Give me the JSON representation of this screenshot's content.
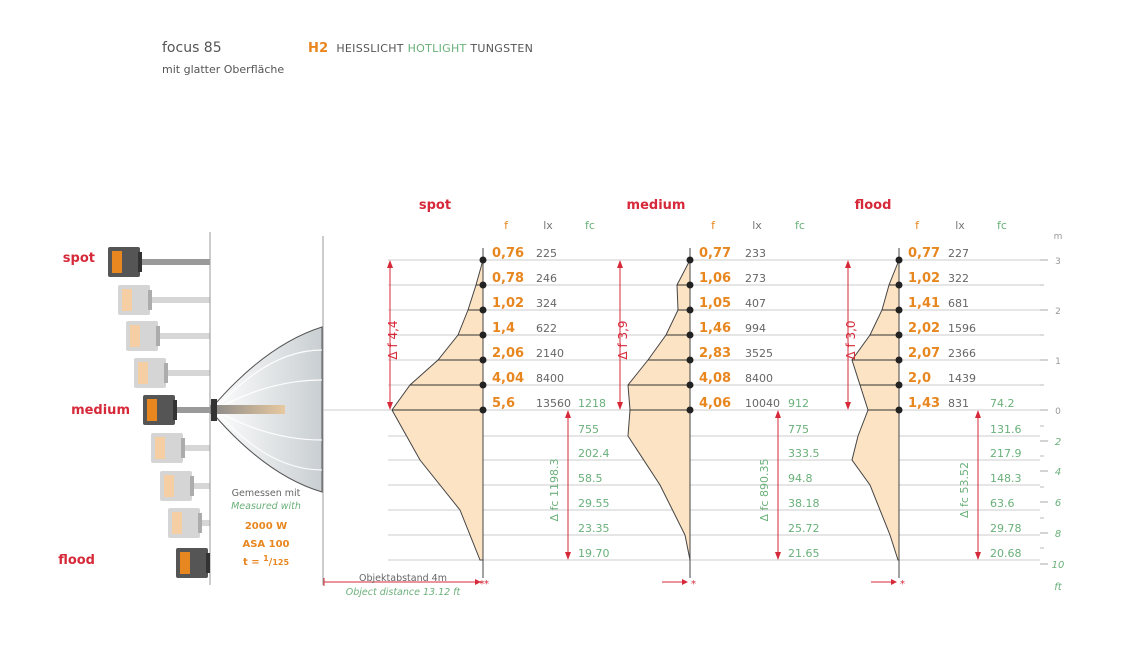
{
  "header": {
    "product": "focus 85",
    "subtitle": "mit glatter Oberfläche",
    "code": "H2",
    "type_de": "HEISSLICHT",
    "type_en": "HOTLIGHT",
    "type_tungsten": "TUNGSTEN"
  },
  "lamp_labels": {
    "spot": "spot",
    "medium": "medium",
    "flood": "flood"
  },
  "measured": {
    "line1": "Gemessen mit",
    "line2": "Measured with",
    "power": "2000 W",
    "asa": "ASA 100",
    "shutter_prefix": "t = ",
    "shutter_num": "1",
    "shutter_den": "125"
  },
  "distance": {
    "de": "Objektabstand  4m",
    "en": "Object distance 13.12 ft"
  },
  "column_headers": {
    "f": "f",
    "lx": "lx",
    "fc": "fc"
  },
  "axes": {
    "m_label": "m",
    "ft_label": "ft",
    "m_ticks": [
      "3",
      "2",
      "1",
      "0"
    ],
    "ft_ticks": [
      "2",
      "4",
      "6",
      "8",
      "10"
    ]
  },
  "colors": {
    "orange": "#e8861f",
    "green": "#6ab07a",
    "red": "#d62a3a",
    "fill": "#fbe3c4"
  },
  "chart_data": [
    {
      "type": "table",
      "title": "spot",
      "f_values": [
        "0,76",
        "0,78",
        "1,02",
        "1,4",
        "2,06",
        "4,04",
        "5,6"
      ],
      "lx_values": [
        "225",
        "246",
        "324",
        "622",
        "2140",
        "8400",
        "13560"
      ],
      "fc_values": [
        "1218",
        "755",
        "202.4",
        "58.5",
        "29.55",
        "23.35",
        "19.70"
      ],
      "delta_f": "Δ f 4,4",
      "delta_fc": "Δ fc 1198.3"
    },
    {
      "type": "table",
      "title": "medium",
      "f_values": [
        "0,77",
        "1,06",
        "1,05",
        "1,46",
        "2,83",
        "4,08",
        "4,06"
      ],
      "lx_values": [
        "233",
        "273",
        "407",
        "994",
        "3525",
        "8400",
        "10040"
      ],
      "fc_values": [
        "912",
        "775",
        "333.5",
        "94.8",
        "38.18",
        "25.72",
        "21.65"
      ],
      "delta_f": "Δ f 3,9",
      "delta_fc": "Δ fc 890.35"
    },
    {
      "type": "table",
      "title": "flood",
      "f_values": [
        "0,77",
        "1,02",
        "1,41",
        "2,02",
        "2,07",
        "2,0",
        "1,43"
      ],
      "lx_values": [
        "227",
        "322",
        "681",
        "1596",
        "2366",
        "1439",
        "831"
      ],
      "fc_values": [
        "74.2",
        "131.6",
        "217.9",
        "148.3",
        "63.6",
        "29.78",
        "20.68"
      ],
      "delta_f": "Δ f 3,0",
      "delta_fc": "Δ fc 53.52"
    }
  ]
}
